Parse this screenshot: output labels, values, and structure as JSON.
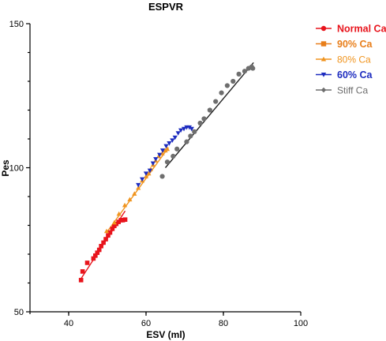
{
  "chart_data": {
    "type": "scatter",
    "title": "ESPVR",
    "xlabel": "ESV (ml)",
    "ylabel": "Pes",
    "xlim": [
      30,
      100
    ],
    "ylim": [
      50,
      150
    ],
    "xticks": [
      40,
      60,
      80,
      100
    ],
    "yticks": [
      50,
      100,
      150
    ],
    "legend_position": "top-right",
    "grid": false,
    "series": [
      {
        "name": "Normal Ca",
        "color": "#e8141c",
        "marker": "square",
        "legend_marker": "circle",
        "legend_bold": true,
        "points": [
          [
            43.2,
            61.0
          ],
          [
            43.6,
            64.0
          ],
          [
            44.8,
            67.0
          ],
          [
            46.4,
            68.5
          ],
          [
            46.9,
            69.5
          ],
          [
            47.4,
            70.5
          ],
          [
            47.9,
            71.5
          ],
          [
            48.4,
            72.8
          ],
          [
            49.0,
            74.0
          ],
          [
            49.6,
            75.2
          ],
          [
            50.2,
            76.5
          ],
          [
            50.7,
            77.5
          ],
          [
            51.3,
            78.8
          ],
          [
            51.8,
            79.8
          ],
          [
            52.3,
            80.5
          ],
          [
            52.9,
            81.2
          ],
          [
            53.5,
            81.8
          ],
          [
            54.0,
            81.8
          ],
          [
            54.6,
            82.0
          ]
        ],
        "fit": [
          [
            43.2,
            61.5
          ],
          [
            54.6,
            85.0
          ]
        ]
      },
      {
        "name": "90% Ca",
        "color": "#e87e1a",
        "marker": "triangle",
        "legend_marker": "square",
        "legend_bold": true,
        "points": [],
        "fit": []
      },
      {
        "name": "80% Ca",
        "color": "#f0941e",
        "marker": "triangle",
        "legend_marker": "triangle",
        "legend_bold": false,
        "points": [
          [
            49.8,
            78.0
          ],
          [
            51.8,
            81.0
          ],
          [
            53.0,
            84.0
          ],
          [
            54.5,
            87.0
          ],
          [
            55.8,
            89.0
          ],
          [
            57.0,
            91.0
          ],
          [
            58.0,
            93.0
          ],
          [
            59.0,
            95.5
          ],
          [
            60.0,
            97.0
          ],
          [
            60.7,
            98.0
          ],
          [
            61.2,
            99.5
          ],
          [
            61.8,
            101.0
          ],
          [
            62.5,
            102.5
          ],
          [
            63.3,
            104.0
          ],
          [
            64.2,
            105.0
          ],
          [
            65.0,
            106.0
          ],
          [
            65.5,
            106.5
          ]
        ],
        "fit": [
          [
            49.8,
            77.5
          ],
          [
            65.8,
            107.0
          ]
        ]
      },
      {
        "name": "60% Ca",
        "color": "#1c2bbf",
        "marker": "triangle-down",
        "legend_marker": "triangle-down",
        "legend_bold": true,
        "points": [
          [
            58.0,
            94.0
          ],
          [
            59.0,
            96.0
          ],
          [
            60.0,
            98.0
          ],
          [
            61.0,
            99.0
          ],
          [
            61.8,
            101.5
          ],
          [
            62.5,
            103.0
          ],
          [
            63.5,
            104.5
          ],
          [
            64.3,
            106.0
          ],
          [
            65.2,
            107.5
          ],
          [
            66.0,
            108.5
          ],
          [
            66.8,
            109.5
          ],
          [
            67.5,
            110.5
          ],
          [
            68.3,
            112.0
          ],
          [
            69.0,
            113.0
          ],
          [
            69.8,
            113.5
          ],
          [
            70.5,
            114.0
          ],
          [
            71.2,
            114.0
          ],
          [
            71.8,
            113.5
          ]
        ],
        "fit": []
      },
      {
        "name": "Stiff Ca",
        "color": "#6e6e6e",
        "marker": "circle",
        "legend_marker": "diamond",
        "legend_bold": false,
        "points": [
          [
            64.2,
            97.0
          ],
          [
            65.5,
            102.0
          ],
          [
            67.0,
            104.0
          ],
          [
            68.0,
            106.5
          ],
          [
            70.5,
            109.0
          ],
          [
            71.5,
            111.0
          ],
          [
            72.5,
            112.5
          ],
          [
            74.0,
            115.5
          ],
          [
            75.0,
            117.0
          ],
          [
            76.5,
            120.0
          ],
          [
            78.0,
            123.0
          ],
          [
            79.5,
            126.0
          ],
          [
            81.0,
            128.5
          ],
          [
            82.5,
            130.0
          ],
          [
            84.0,
            132.5
          ],
          [
            85.5,
            133.5
          ],
          [
            86.5,
            134.5
          ],
          [
            87.3,
            135.0
          ],
          [
            87.6,
            134.5
          ]
        ],
        "fit": [
          [
            65.0,
            100.0
          ],
          [
            87.8,
            136.5
          ]
        ]
      }
    ]
  }
}
